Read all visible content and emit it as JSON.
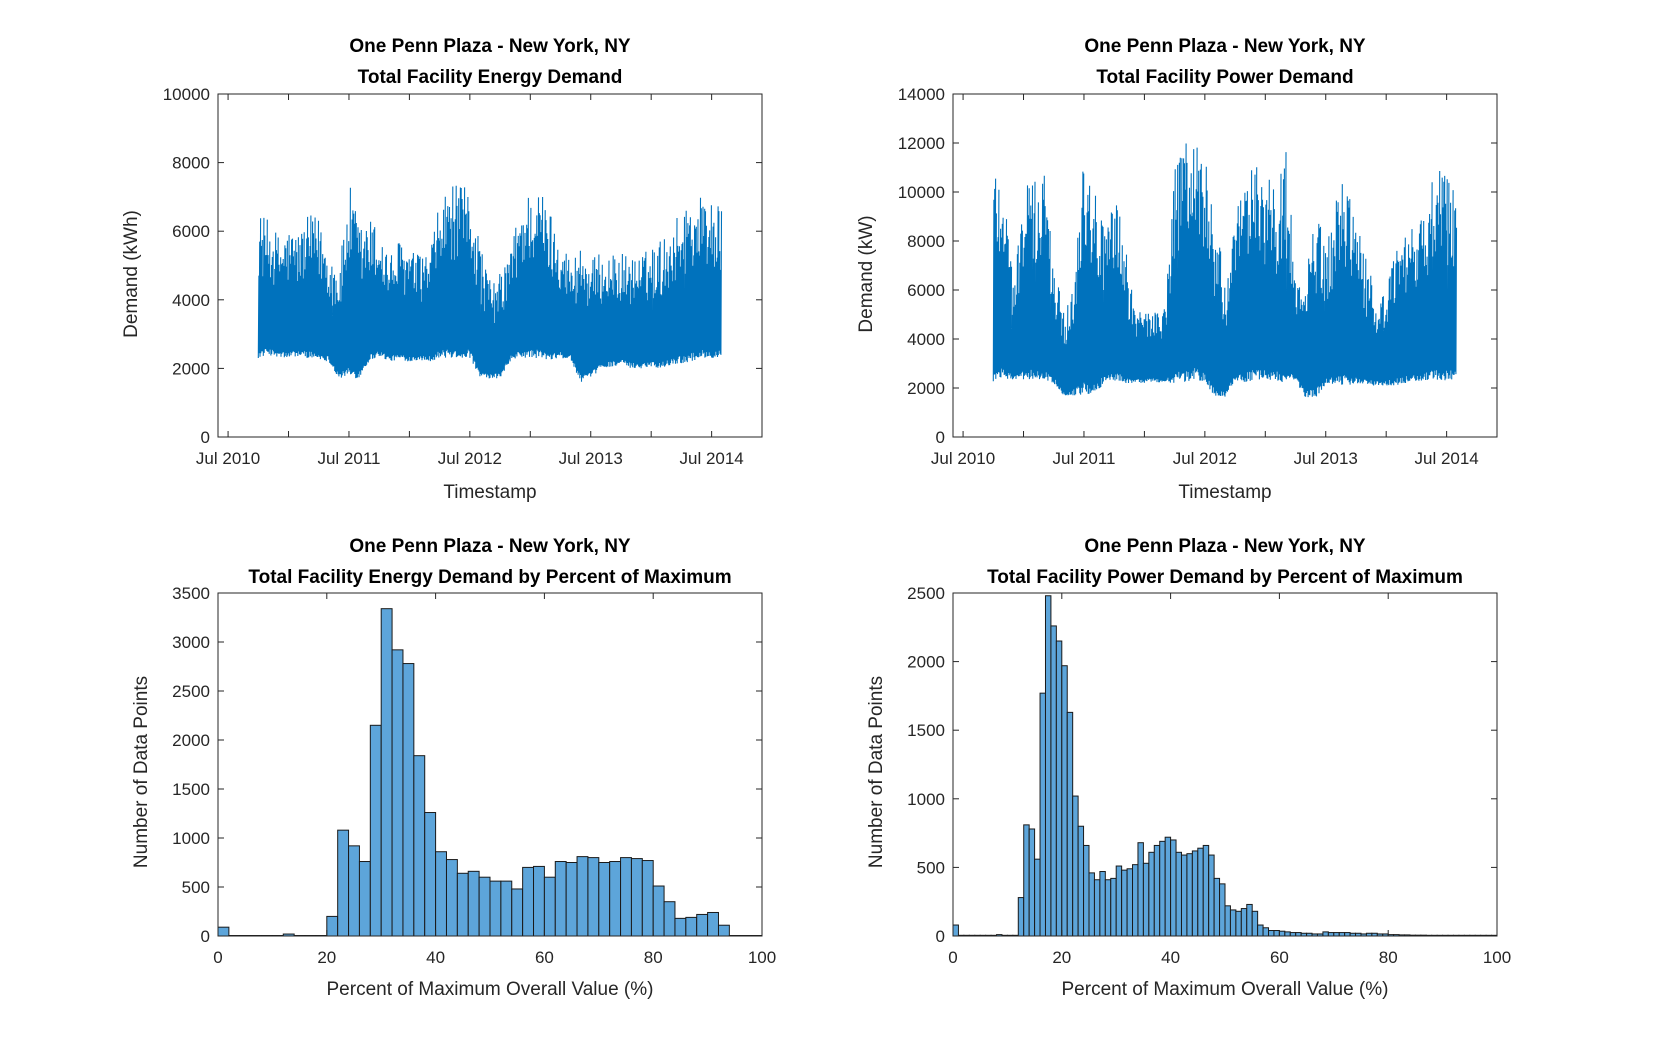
{
  "chart_data": [
    {
      "type": "line",
      "title": [
        "One Penn Plaza - New York, NY",
        "Total Facility Energy Demand"
      ],
      "xlabel": "Timestamp",
      "ylabel": "Demand (kWh)",
      "x_tick_labels": [
        "Jul 2010",
        "Jul 2011",
        "Jul 2012",
        "Jul 2013",
        "Jul 2014"
      ],
      "y_ticks": [
        0,
        2000,
        4000,
        6000,
        8000,
        10000
      ],
      "ylim": [
        0,
        10000
      ],
      "x_start": "2010-06",
      "x_end": "2014-12",
      "data_start": "2010-10",
      "data_end": "2014-08",
      "color": "#0072BD",
      "series": [
        {
          "x": [
            "2010-10",
            "2010-11",
            "2010-12",
            "2011-01",
            "2011-02",
            "2011-03",
            "2011-04",
            "2011-05",
            "2011-06",
            "2011-07",
            "2011-08",
            "2011-09",
            "2011-10",
            "2011-11",
            "2011-12",
            "2012-01",
            "2012-02",
            "2012-03",
            "2012-04",
            "2012-05",
            "2012-06",
            "2012-07",
            "2012-08",
            "2012-09",
            "2012-10",
            "2012-11",
            "2012-12",
            "2013-01",
            "2013-02",
            "2013-03",
            "2013-04",
            "2013-05",
            "2013-06",
            "2013-07",
            "2013-08",
            "2013-09",
            "2013-10",
            "2013-11",
            "2013-12",
            "2014-01",
            "2014-02",
            "2014-03",
            "2014-04",
            "2014-05",
            "2014-06",
            "2014-07",
            "2014-08"
          ],
          "low": [
            2300,
            2400,
            2300,
            2300,
            2350,
            2300,
            2250,
            2200,
            1700,
            1750,
            1700,
            2200,
            2350,
            2200,
            2250,
            2200,
            2250,
            2200,
            2300,
            2300,
            2300,
            2300,
            1700,
            1700,
            1700,
            2200,
            2300,
            2300,
            2300,
            2200,
            2300,
            2250,
            1600,
            1700,
            2000,
            2050,
            2100,
            2000,
            2000,
            2050,
            2000,
            2100,
            2150,
            2200,
            2300,
            2300,
            2350
          ],
          "high": [
            6600,
            6300,
            5900,
            6100,
            6000,
            6500,
            6400,
            5400,
            5000,
            7400,
            6200,
            6400,
            6100,
            5300,
            5800,
            5500,
            5300,
            5500,
            6900,
            7400,
            7300,
            7300,
            5700,
            4500,
            4800,
            5600,
            6800,
            7300,
            7200,
            6600,
            5900,
            5100,
            5800,
            5200,
            5400,
            5300,
            5400,
            5300,
            5300,
            5600,
            5800,
            6200,
            6700,
            7100,
            7100,
            7000,
            6600
          ]
        }
      ]
    },
    {
      "type": "line",
      "title": [
        "One Penn Plaza - New York, NY",
        "Total Facility Power Demand"
      ],
      "xlabel": "Timestamp",
      "ylabel": "Demand (kW)",
      "x_tick_labels": [
        "Jul 2010",
        "Jul 2011",
        "Jul 2012",
        "Jul 2013",
        "Jul 2014"
      ],
      "y_ticks": [
        0,
        2000,
        4000,
        6000,
        8000,
        10000,
        12000,
        14000
      ],
      "ylim": [
        0,
        14000
      ],
      "x_start": "2010-06",
      "x_end": "2014-12",
      "data_start": "2010-10",
      "data_end": "2014-08",
      "color": "#0072BD",
      "series": [
        {
          "x": [
            "2010-10",
            "2010-11",
            "2010-12",
            "2011-01",
            "2011-02",
            "2011-03",
            "2011-04",
            "2011-05",
            "2011-06",
            "2011-07",
            "2011-08",
            "2011-09",
            "2011-10",
            "2011-11",
            "2011-12",
            "2012-01",
            "2012-02",
            "2012-03",
            "2012-04",
            "2012-05",
            "2012-06",
            "2012-07",
            "2012-08",
            "2012-09",
            "2012-10",
            "2012-11",
            "2012-12",
            "2013-01",
            "2013-02",
            "2013-03",
            "2013-04",
            "2013-05",
            "2013-06",
            "2013-07",
            "2013-08",
            "2013-09",
            "2013-10",
            "2013-11",
            "2013-12",
            "2014-01",
            "2014-02",
            "2014-03",
            "2014-04",
            "2014-05",
            "2014-06",
            "2014-07",
            "2014-08"
          ],
          "low": [
            2200,
            2400,
            2300,
            2300,
            2350,
            2300,
            2200,
            1700,
            1700,
            1700,
            1700,
            2200,
            2300,
            2200,
            2200,
            2200,
            2250,
            2200,
            2200,
            2200,
            2300,
            2200,
            1600,
            1600,
            2200,
            2200,
            2300,
            2300,
            2300,
            2200,
            2300,
            1600,
            1600,
            2100,
            2100,
            2100,
            2150,
            2100,
            2100,
            2100,
            2100,
            2200,
            2250,
            2300,
            2300,
            2300,
            2350
          ],
          "high": [
            11600,
            10800,
            6300,
            10600,
            10400,
            11100,
            7100,
            5000,
            6700,
            12600,
            10400,
            8500,
            10000,
            8000,
            5300,
            5500,
            5200,
            5400,
            11000,
            12400,
            12700,
            11500,
            8700,
            6500,
            9100,
            10500,
            11800,
            10800,
            10000,
            11700,
            6500,
            6700,
            9300,
            7800,
            9900,
            10800,
            9000,
            7200,
            5800,
            6100,
            7800,
            8400,
            8600,
            9500,
            11500,
            10800,
            10400
          ]
        }
      ]
    },
    {
      "type": "bar",
      "title": [
        "One Penn Plaza - New York, NY",
        "Total Facility Energy Demand by Percent of Maximum"
      ],
      "xlabel": "Percent of Maximum Overall Value (%)",
      "ylabel": "Number of Data Points",
      "x_ticks": [
        0,
        20,
        40,
        60,
        80,
        100
      ],
      "y_ticks": [
        0,
        500,
        1000,
        1500,
        2000,
        2500,
        3000,
        3500
      ],
      "xlim": [
        0,
        100
      ],
      "ylim": [
        0,
        3500
      ],
      "bin_width": 2,
      "fill": "#4DBEEE",
      "values": [
        90,
        5,
        5,
        5,
        5,
        5,
        20,
        5,
        5,
        5,
        200,
        1080,
        920,
        760,
        2150,
        3340,
        2920,
        2780,
        1840,
        1260,
        860,
        780,
        640,
        660,
        600,
        560,
        560,
        480,
        700,
        710,
        600,
        760,
        750,
        810,
        800,
        750,
        760,
        800,
        790,
        770,
        510,
        350,
        180,
        190,
        220,
        240,
        110,
        5,
        5,
        5
      ]
    },
    {
      "type": "bar",
      "title": [
        "One Penn Plaza - New York, NY",
        "Total Facility Power Demand by Percent of Maximum"
      ],
      "xlabel": "Percent of Maximum Overall Value (%)",
      "ylabel": "Number of Data Points",
      "x_ticks": [
        0,
        20,
        40,
        60,
        80,
        100
      ],
      "y_ticks": [
        0,
        500,
        1000,
        1500,
        2000,
        2500
      ],
      "xlim": [
        0,
        100
      ],
      "ylim": [
        0,
        2500
      ],
      "bin_width": 1,
      "fill": "#4DBEEE",
      "values": [
        80,
        5,
        5,
        5,
        5,
        5,
        5,
        5,
        10,
        5,
        5,
        5,
        280,
        810,
        780,
        560,
        1770,
        2480,
        2260,
        2150,
        1970,
        1630,
        1020,
        800,
        660,
        460,
        410,
        470,
        410,
        420,
        510,
        480,
        490,
        520,
        680,
        530,
        610,
        660,
        690,
        720,
        700,
        610,
        590,
        600,
        620,
        640,
        660,
        590,
        420,
        380,
        220,
        190,
        180,
        200,
        230,
        180,
        80,
        60,
        40,
        40,
        35,
        30,
        25,
        25,
        20,
        20,
        15,
        15,
        30,
        25,
        25,
        25,
        25,
        20,
        20,
        15,
        20,
        20,
        15,
        15,
        10,
        10,
        8,
        8,
        6,
        6,
        6,
        5,
        5,
        5,
        5,
        5,
        5,
        5,
        5,
        5,
        5,
        5,
        5,
        5
      ]
    }
  ]
}
